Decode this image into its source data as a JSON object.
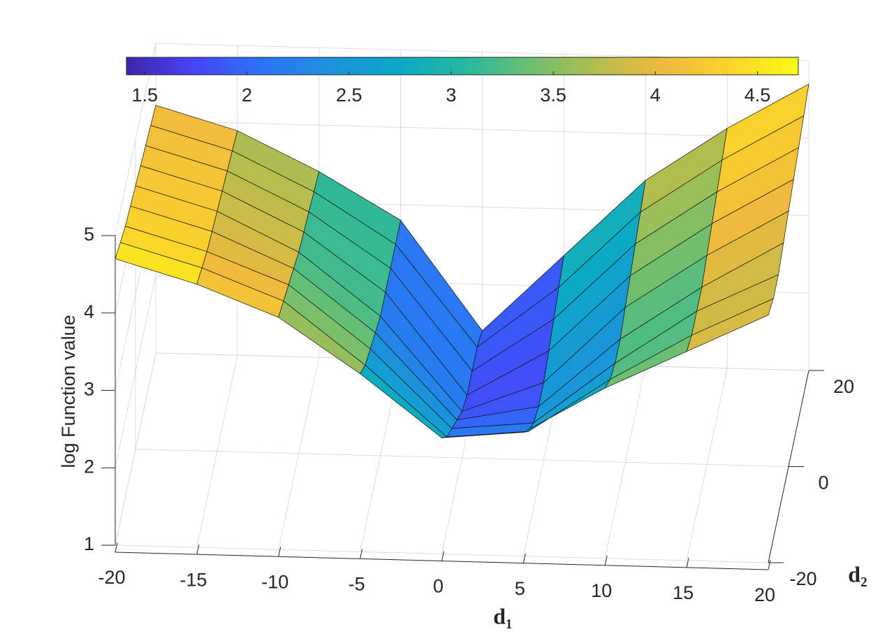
{
  "chart_data": {
    "type": "surface",
    "xlabel": "d₁",
    "ylabel": "d₂",
    "zlabel": "log Function value",
    "x": [
      -20,
      -15,
      -10,
      -5,
      0,
      5,
      10,
      15,
      20
    ],
    "y": [
      -20,
      -15,
      -10,
      -5,
      0,
      5,
      10,
      15,
      20
    ],
    "z": [
      [
        4.7,
        4.4,
        4.0,
        3.3,
        2.5,
        2.6,
        3.2,
        3.7,
        4.2
      ],
      [
        4.6,
        4.3,
        3.9,
        3.1,
        2.2,
        2.3,
        3.0,
        3.6,
        4.1
      ],
      [
        4.5,
        4.2,
        3.8,
        3.0,
        2.0,
        2.1,
        2.9,
        3.6,
        4.1
      ],
      [
        4.45,
        4.15,
        3.7,
        2.9,
        1.8,
        2.0,
        2.9,
        3.6,
        4.2
      ],
      [
        4.4,
        4.1,
        3.6,
        2.8,
        1.6,
        2.0,
        3.0,
        3.7,
        4.3
      ],
      [
        4.35,
        4.05,
        3.55,
        2.8,
        1.5,
        2.1,
        3.1,
        3.8,
        4.4
      ],
      [
        4.3,
        4.0,
        3.5,
        2.8,
        1.5,
        2.2,
        3.2,
        3.9,
        4.5
      ],
      [
        4.25,
        3.95,
        3.45,
        2.8,
        1.5,
        2.3,
        3.3,
        4.0,
        4.6
      ],
      [
        4.2,
        3.9,
        3.4,
        2.8,
        1.4,
        2.4,
        3.4,
        4.1,
        4.7
      ]
    ],
    "xlim": [
      -20,
      20
    ],
    "xticks": [
      -20,
      -15,
      -10,
      -5,
      0,
      5,
      10,
      15,
      20
    ],
    "ylim": [
      -20,
      20
    ],
    "yticks": [
      -20,
      0,
      20
    ],
    "zlim": [
      1,
      5
    ],
    "zticks": [
      1,
      2,
      3,
      4,
      5
    ],
    "clim": [
      1.41,
      4.7
    ],
    "cticks": [
      1.5,
      2,
      2.5,
      3,
      3.5,
      4,
      4.5
    ],
    "colormap": [
      "#3e26a8",
      "#4743f8",
      "#2c73f9",
      "#1e90dd",
      "#09a8c8",
      "#24b7a0",
      "#6cbf71",
      "#b5bd4d",
      "#f0b93d",
      "#fbd42c",
      "#f9fb15"
    ],
    "grid": true
  }
}
